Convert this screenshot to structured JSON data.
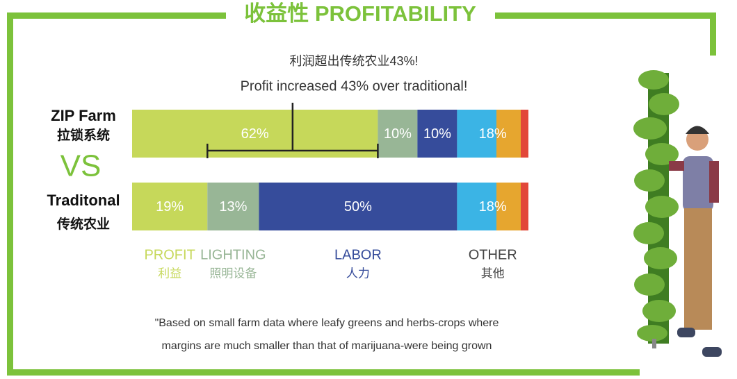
{
  "chart_data": {
    "type": "stacked-bar-horizontal",
    "title": "收益性 PROFITABILITY",
    "annotation": [
      "利润超出传统农业43%!",
      "Profit increased 43% over traditional!"
    ],
    "versus": "VS",
    "categories": [
      [
        "ZIP Farm",
        "拉锁系统"
      ],
      [
        "Traditonal",
        "传统农业"
      ]
    ],
    "xlim": [
      0,
      100
    ],
    "series": [
      {
        "name": "PROFIT",
        "name_zh": "利益",
        "color": "#c6d85a",
        "label_color": "#c6d85a",
        "values": [
          62,
          19
        ],
        "value_labels": [
          "62%",
          "19%"
        ]
      },
      {
        "name": "LIGHTING",
        "name_zh": "照明设备",
        "color": "#98b696",
        "label_color": "#98b696",
        "values": [
          10,
          13
        ],
        "value_labels": [
          "10%",
          "13%"
        ]
      },
      {
        "name": "LABOR",
        "name_zh": "人力",
        "color": "#364c9b",
        "label_color": "#364c9b",
        "values": [
          10,
          50
        ],
        "value_labels": [
          "10%",
          "50%"
        ]
      },
      {
        "name": "OTHER",
        "name_zh": "其他",
        "color": "#3bb4e5",
        "accent_colors": [
          "#e6a62f",
          "#e2483a"
        ],
        "label_color": "#444444",
        "values": [
          18,
          18
        ],
        "value_labels": [
          "18%",
          "18%"
        ]
      }
    ],
    "footnote": [
      "\"Based on small farm data where leafy greens and herbs-crops where",
      "margins are much smaller than that of marijuana-were being grown"
    ]
  }
}
